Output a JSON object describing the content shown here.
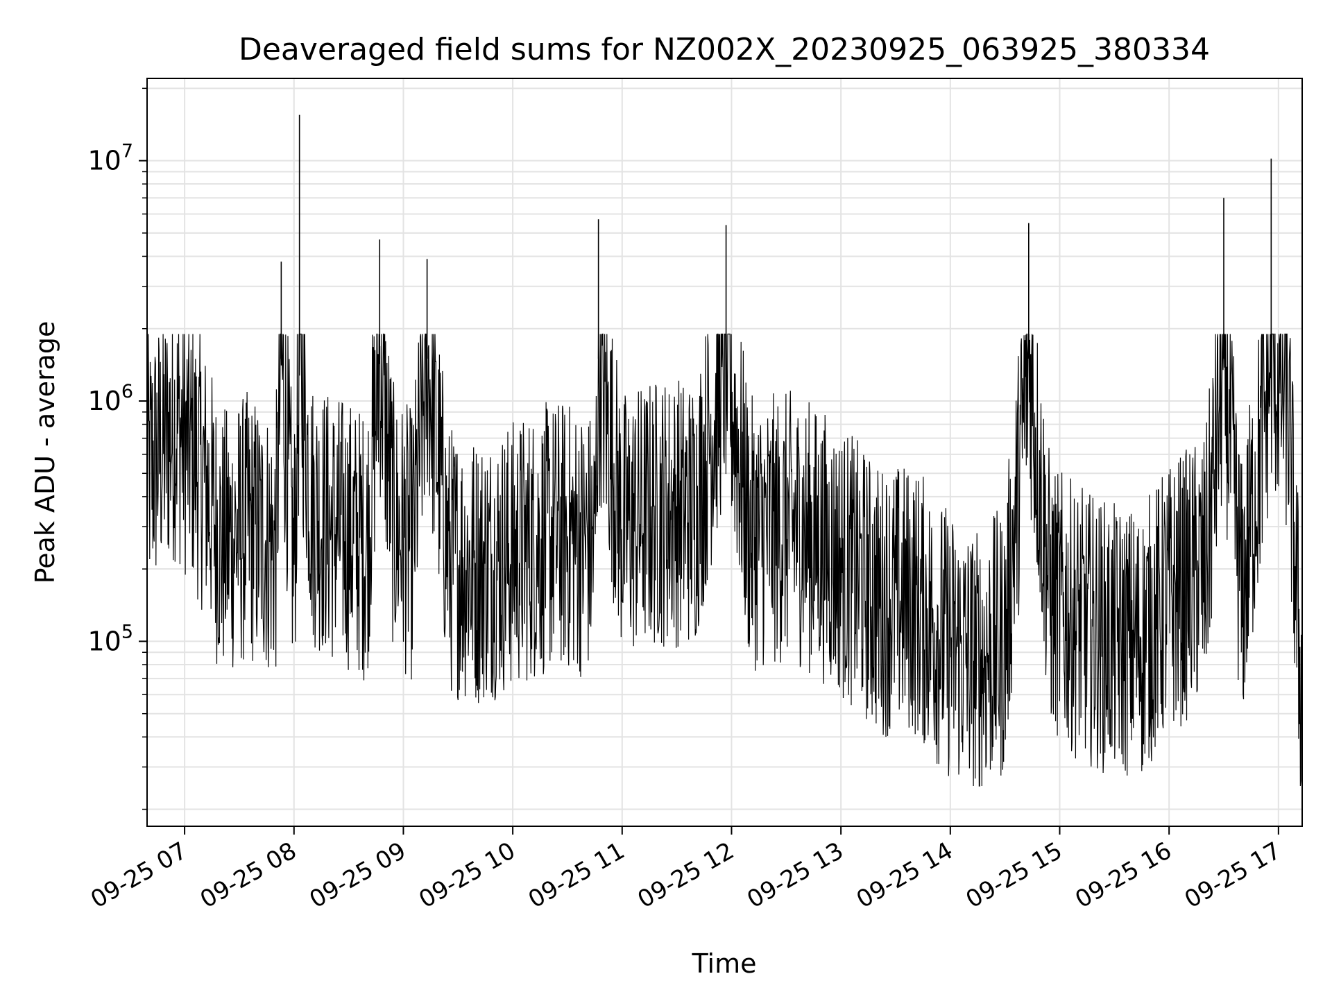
{
  "chart_data": {
    "type": "line",
    "title": "Deaveraged field sums for NZ002X_20230925_063925_380334",
    "xlabel": "Time",
    "ylabel": "Peak ADU - average",
    "yscale": "log",
    "ylim": [
      17000,
      22000000
    ],
    "xlim": [
      "2023-09-25 06:39:25",
      "2023-09-25 17:13:00"
    ],
    "x_ticks": [
      "09-25 07",
      "09-25 08",
      "09-25 09",
      "09-25 10",
      "09-25 11",
      "09-25 12",
      "09-25 13",
      "09-25 14",
      "09-25 15",
      "09-25 16",
      "09-25 17"
    ],
    "y_ticks": [
      {
        "base": "10",
        "exp": "5",
        "value": 100000
      },
      {
        "base": "10",
        "exp": "6",
        "value": 1000000
      },
      {
        "base": "10",
        "exp": "7",
        "value": 10000000
      }
    ],
    "grid": true,
    "line_color": "#000000",
    "series": [
      {
        "x": [
          "2023-09-25 06:39:25",
          "2023-09-25 06:55:00",
          "2023-09-25 07:05:00",
          "2023-09-25 07:12:00",
          "2023-09-25 07:20:00",
          "2023-09-25 07:35:00",
          "2023-09-25 07:50:00",
          "2023-09-25 07:53:00",
          "2023-09-25 08:00:00",
          "2023-09-25 08:03:00",
          "2023-09-25 08:10:00",
          "2023-09-25 08:20:00",
          "2023-09-25 08:30:00",
          "2023-09-25 08:40:00",
          "2023-09-25 08:47:00",
          "2023-09-25 08:55:00",
          "2023-09-25 09:05:00",
          "2023-09-25 09:13:00",
          "2023-09-25 09:25:00",
          "2023-09-25 09:40:00",
          "2023-09-25 09:55:00",
          "2023-09-25 10:10:00",
          "2023-09-25 10:25:00",
          "2023-09-25 10:45:00",
          "2023-09-25 10:47:00",
          "2023-09-25 11:00:00",
          "2023-09-25 11:20:00",
          "2023-09-25 11:40:00",
          "2023-09-25 11:57:00",
          "2023-09-25 12:10:00",
          "2023-09-25 12:35:00",
          "2023-09-25 12:50:00",
          "2023-09-25 13:05:00",
          "2023-09-25 13:20:00",
          "2023-09-25 13:40:00",
          "2023-09-25 13:58:00",
          "2023-09-25 14:15:00",
          "2023-09-25 14:30:00",
          "2023-09-25 14:43:00",
          "2023-09-25 14:55:00",
          "2023-09-25 15:10:00",
          "2023-09-25 15:30:00",
          "2023-09-25 15:45:00",
          "2023-09-25 16:00:00",
          "2023-09-25 16:20:00",
          "2023-09-25 16:30:00",
          "2023-09-25 16:40:00",
          "2023-09-25 16:56:00",
          "2023-09-25 17:05:00",
          "2023-09-25 17:10:00",
          "2023-09-25 17:13:00"
        ],
        "y": [
          500000,
          800000,
          600000,
          450000,
          250000,
          300000,
          250000,
          3800000,
          200000,
          15500000,
          350000,
          300000,
          280000,
          250000,
          4700000,
          300000,
          250000,
          3900000,
          220000,
          200000,
          220000,
          250000,
          280000,
          250000,
          5700000,
          300000,
          350000,
          350000,
          5400000,
          280000,
          300000,
          250000,
          200000,
          150000,
          150000,
          100000,
          80000,
          100000,
          5500000,
          150000,
          120000,
          100000,
          100000,
          150000,
          200000,
          7000000,
          150000,
          10200000,
          1000000,
          150000,
          55000
        ]
      }
    ]
  }
}
